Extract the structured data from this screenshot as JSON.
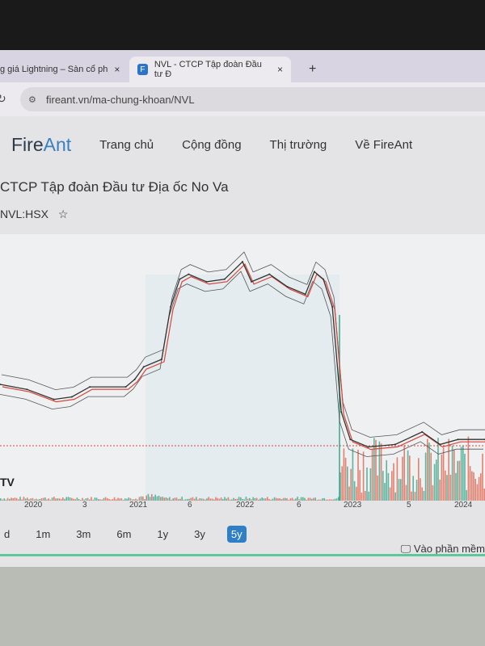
{
  "browser": {
    "tabs": [
      {
        "label": "g giá Lightning – Sàn cổ ph"
      },
      {
        "label": "NVL - CTCP Tập đoàn Đầu tư Đ",
        "favicon": "F",
        "active": true
      }
    ],
    "new_tab": "+",
    "close": "×",
    "url": "fireant.vn/ma-chung-khoan/NVL"
  },
  "site": {
    "logo_a": "Fire",
    "logo_b": "Ant",
    "nav": [
      "Trang chủ",
      "Cộng đồng",
      "Thị trường",
      "Về FireAnt"
    ]
  },
  "stock": {
    "name": "CTCP Tập đoàn Đầu tư Địa ốc No Va",
    "ticker": "NVL:HSX",
    "star": "☆"
  },
  "chart_data": {
    "type": "line",
    "x_ticks": [
      "2020",
      "3",
      "2021",
      "6",
      "2022",
      "6",
      "2023",
      "5",
      "2024"
    ],
    "dates": [
      "2019-09",
      "2019-12",
      "2020-03",
      "2020-05",
      "2020-07",
      "2020-11",
      "2020-12",
      "2021-01",
      "2021-03",
      "2021-04",
      "2021-05",
      "2021-06",
      "2021-08",
      "2021-10",
      "2021-12",
      "2022-01",
      "2022-03",
      "2022-05",
      "2022-07",
      "2022-08",
      "2022-09",
      "2022-10",
      "2022-11",
      "2022-12",
      "2023-02",
      "2023-05",
      "2023-08",
      "2023-10",
      "2023-12",
      "2024-03"
    ],
    "values": [
      40,
      38,
      34,
      35,
      39,
      39,
      42,
      47,
      50,
      71,
      82,
      84,
      81,
      82,
      89,
      81,
      84,
      79,
      76,
      85,
      82,
      71,
      29,
      18,
      15,
      16,
      21,
      16,
      18,
      18
    ],
    "colors": {
      "price": "#333333",
      "ma": "#d9453a",
      "volume_up": "#3aa58a",
      "volume_down": "#e0644f"
    },
    "watermark": "TV"
  },
  "ranges": {
    "items": [
      "d",
      "1m",
      "3m",
      "6m",
      "1y",
      "3y",
      "5y"
    ],
    "selected": "5y"
  },
  "desktop_link": "Vào phần mềm"
}
